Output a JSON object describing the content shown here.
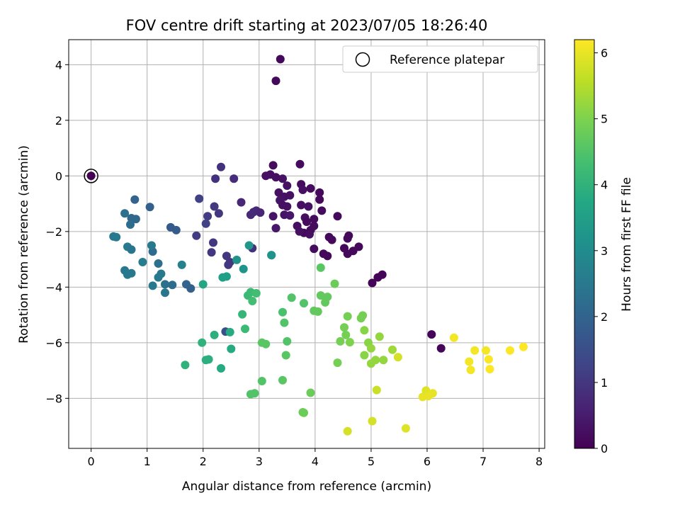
{
  "chart_data": {
    "type": "scatter",
    "title": "FOV centre drift starting at 2023/07/05 18:26:40",
    "xlabel": "Angular distance from reference (arcmin)",
    "ylabel": "Rotation from reference (arcmin)",
    "xlim": [
      -0.4,
      8.1
    ],
    "ylim": [
      -9.8,
      4.9
    ],
    "xticks": [
      0,
      1,
      2,
      3,
      4,
      5,
      6,
      7,
      8
    ],
    "yticks": [
      -8,
      -6,
      -4,
      -2,
      0,
      2,
      4
    ],
    "grid": true,
    "legend": {
      "position": "top-right",
      "entries": [
        "Reference platepar"
      ]
    },
    "reference_point": {
      "x": 0,
      "y": 0
    },
    "colorbar": {
      "label": "Hours from first FF file",
      "colormap": "viridis",
      "range": [
        0,
        6.2
      ],
      "ticks": [
        0,
        1,
        2,
        3,
        4,
        5,
        6
      ]
    },
    "points": [
      [
        0,
        0,
        0
      ],
      [
        3.38,
        4.2,
        0.15
      ],
      [
        3.3,
        3.42,
        0.15
      ],
      [
        3.73,
        0.42,
        0.2
      ],
      [
        3.25,
        0.38,
        0.2
      ],
      [
        3.2,
        0.05,
        0.25
      ],
      [
        3.12,
        0.0,
        0.3
      ],
      [
        3.3,
        -0.05,
        0.25
      ],
      [
        3.42,
        -0.1,
        0.3
      ],
      [
        3.5,
        -0.35,
        0.3
      ],
      [
        3.35,
        -0.6,
        0.3
      ],
      [
        3.45,
        -0.75,
        0.3
      ],
      [
        3.55,
        -0.7,
        0.3
      ],
      [
        3.75,
        -0.3,
        0.2
      ],
      [
        3.78,
        -0.5,
        0.25
      ],
      [
        3.92,
        -0.45,
        0.2
      ],
      [
        4.08,
        -0.6,
        0.15
      ],
      [
        4.08,
        -0.85,
        0.15
      ],
      [
        3.37,
        -0.88,
        0.35
      ],
      [
        3.42,
        -1.05,
        0.3
      ],
      [
        3.5,
        -1.1,
        0.3
      ],
      [
        3.75,
        -1.05,
        0.25
      ],
      [
        3.88,
        -1.1,
        0.3
      ],
      [
        4.12,
        -1.25,
        0.2
      ],
      [
        3.25,
        -1.45,
        0.35
      ],
      [
        3.45,
        -1.4,
        0.35
      ],
      [
        3.55,
        -1.42,
        0.4
      ],
      [
        3.82,
        -1.5,
        0.25
      ],
      [
        3.98,
        -1.55,
        0.2
      ],
      [
        3.85,
        -1.65,
        0.2
      ],
      [
        3.98,
        -1.8,
        0.2
      ],
      [
        3.92,
        -1.95,
        0.2
      ],
      [
        3.8,
        -2.05,
        0.2
      ],
      [
        3.9,
        -2.1,
        0.25
      ],
      [
        3.68,
        -1.8,
        0.25
      ],
      [
        3.72,
        -2.0,
        0.3
      ],
      [
        3.3,
        -1.88,
        0.4
      ],
      [
        4.4,
        -1.45,
        0.15
      ],
      [
        4.25,
        -2.2,
        0.15
      ],
      [
        4.3,
        -2.3,
        0.15
      ],
      [
        4.6,
        -2.15,
        0.15
      ],
      [
        4.58,
        -2.25,
        0.15
      ],
      [
        4.78,
        -2.55,
        0.15
      ],
      [
        4.68,
        -2.7,
        0.15
      ],
      [
        4.52,
        -2.6,
        0.15
      ],
      [
        4.58,
        -2.8,
        0.15
      ],
      [
        4.15,
        -2.8,
        0.15
      ],
      [
        4.22,
        -2.88,
        0.15
      ],
      [
        3.98,
        -2.62,
        0.2
      ],
      [
        5.02,
        -3.85,
        0.05
      ],
      [
        5.12,
        -3.65,
        0.05
      ],
      [
        5.2,
        -3.55,
        0.05
      ],
      [
        6.08,
        -5.7,
        0.1
      ],
      [
        6.25,
        -6.2,
        0.1
      ],
      [
        2.32,
        0.32,
        0.9
      ],
      [
        2.22,
        -0.1,
        0.9
      ],
      [
        2.55,
        -0.1,
        0.8
      ],
      [
        2.9,
        -1.3,
        0.7
      ],
      [
        2.95,
        -1.25,
        0.75
      ],
      [
        2.68,
        -0.95,
        0.7
      ],
      [
        2.85,
        -1.4,
        0.75
      ],
      [
        3.02,
        -1.32,
        0.65
      ],
      [
        2.08,
        -1.45,
        1.1
      ],
      [
        2.28,
        -1.35,
        1.0
      ],
      [
        2.2,
        -1.1,
        1.0
      ],
      [
        2.05,
        -1.72,
        1.2
      ],
      [
        1.93,
        -0.82,
        1.2
      ],
      [
        1.88,
        -2.15,
        1.1
      ],
      [
        2.18,
        -2.4,
        1.0
      ],
      [
        2.15,
        -2.75,
        1.0
      ],
      [
        2.42,
        -2.88,
        1.0
      ],
      [
        2.45,
        -3.2,
        1.0
      ],
      [
        2.48,
        -3.1,
        1.0
      ],
      [
        2.88,
        -2.6,
        0.9
      ],
      [
        2.4,
        -5.6,
        1.5
      ],
      [
        3.22,
        -2.85,
        1.3
      ],
      [
        1.05,
        -1.12,
        1.9
      ],
      [
        0.78,
        -0.85,
        2.0
      ],
      [
        0.72,
        -1.52,
        2.1
      ],
      [
        0.8,
        -1.55,
        2.1
      ],
      [
        0.7,
        -1.75,
        2.2
      ],
      [
        0.6,
        -1.35,
        2.3
      ],
      [
        0.45,
        -2.2,
        2.5
      ],
      [
        0.4,
        -2.18,
        2.5
      ],
      [
        1.42,
        -1.85,
        1.8
      ],
      [
        1.52,
        -1.95,
        1.8
      ],
      [
        1.1,
        -2.72,
        2.2
      ],
      [
        1.08,
        -2.5,
        2.5
      ],
      [
        0.65,
        -2.55,
        2.5
      ],
      [
        0.72,
        -2.65,
        2.4
      ],
      [
        0.92,
        -3.1,
        2.6
      ],
      [
        0.6,
        -3.4,
        2.5
      ],
      [
        0.65,
        -3.55,
        2.5
      ],
      [
        0.72,
        -3.5,
        2.5
      ],
      [
        1.2,
        -3.15,
        2.3
      ],
      [
        1.25,
        -3.52,
        2.5
      ],
      [
        1.2,
        -3.65,
        2.5
      ],
      [
        1.1,
        -3.95,
        2.5
      ],
      [
        1.32,
        -3.9,
        2.3
      ],
      [
        1.32,
        -4.2,
        2.4
      ],
      [
        1.45,
        -3.92,
        2.2
      ],
      [
        1.62,
        -3.2,
        2.7
      ],
      [
        1.7,
        -3.9,
        2.0
      ],
      [
        1.78,
        -4.05,
        1.9
      ],
      [
        2.0,
        -3.9,
        3.7
      ],
      [
        2.35,
        -3.65,
        3.5
      ],
      [
        2.42,
        -3.62,
        3.5
      ],
      [
        2.6,
        -3.02,
        3.2
      ],
      [
        2.72,
        -3.35,
        3.2
      ],
      [
        2.82,
        -2.5,
        3.3
      ],
      [
        3.22,
        -2.85,
        3.2
      ],
      [
        2.7,
        -4.98,
        4.1
      ],
      [
        2.8,
        -4.3,
        4.2
      ],
      [
        2.85,
        -4.18,
        4.2
      ],
      [
        2.88,
        -4.5,
        4.3
      ],
      [
        2.95,
        -4.22,
        4.3
      ],
      [
        2.75,
        -5.5,
        4.2
      ],
      [
        2.48,
        -5.62,
        3.8
      ],
      [
        2.5,
        -6.22,
        3.8
      ],
      [
        2.32,
        -6.92,
        3.8
      ],
      [
        2.1,
        -6.6,
        3.9
      ],
      [
        2.05,
        -6.62,
        3.9
      ],
      [
        2.2,
        -5.72,
        3.9
      ],
      [
        1.98,
        -6.0,
        4.0
      ],
      [
        1.68,
        -6.8,
        4.0
      ],
      [
        2.85,
        -7.85,
        4.5
      ],
      [
        2.92,
        -7.82,
        4.5
      ],
      [
        3.05,
        -7.38,
        4.5
      ],
      [
        3.05,
        -6.0,
        4.6
      ],
      [
        3.12,
        -6.05,
        4.6
      ],
      [
        3.42,
        -4.9,
        4.4
      ],
      [
        3.45,
        -5.28,
        4.5
      ],
      [
        3.5,
        -5.95,
        4.5
      ],
      [
        3.48,
        -6.45,
        4.6
      ],
      [
        3.42,
        -7.35,
        4.6
      ],
      [
        3.58,
        -4.38,
        4.5
      ],
      [
        3.8,
        -4.58,
        4.5
      ],
      [
        3.78,
        -8.5,
        4.8
      ],
      [
        3.8,
        -8.52,
        4.8
      ],
      [
        3.92,
        -7.8,
        4.8
      ],
      [
        3.98,
        -4.85,
        4.7
      ],
      [
        4.05,
        -4.88,
        4.7
      ],
      [
        4.1,
        -3.3,
        4.6
      ],
      [
        4.1,
        -4.3,
        4.7
      ],
      [
        4.18,
        -4.55,
        4.7
      ],
      [
        4.22,
        -4.35,
        4.7
      ],
      [
        4.35,
        -3.88,
        4.8
      ],
      [
        4.4,
        -6.72,
        4.9
      ],
      [
        4.45,
        -5.95,
        4.9
      ],
      [
        4.52,
        -5.45,
        4.9
      ],
      [
        4.55,
        -5.72,
        4.9
      ],
      [
        4.58,
        -5.05,
        4.9
      ],
      [
        4.62,
        -5.98,
        5.0
      ],
      [
        4.85,
        -5.02,
        4.9
      ],
      [
        4.82,
        -5.12,
        4.9
      ],
      [
        4.88,
        -5.55,
        5.1
      ],
      [
        4.88,
        -6.45,
        5.1
      ],
      [
        4.95,
        -6.0,
        5.1
      ],
      [
        5.0,
        -6.2,
        5.2
      ],
      [
        5.0,
        -6.75,
        5.2
      ],
      [
        5.08,
        -6.62,
        5.2
      ],
      [
        5.15,
        -5.78,
        5.2
      ],
      [
        5.22,
        -6.62,
        5.2
      ],
      [
        5.38,
        -6.25,
        5.3
      ],
      [
        4.58,
        -9.18,
        5.8
      ],
      [
        5.02,
        -8.82,
        5.8
      ],
      [
        5.1,
        -7.7,
        5.7
      ],
      [
        5.48,
        -6.52,
        5.8
      ],
      [
        5.62,
        -9.08,
        5.9
      ],
      [
        5.92,
        -7.95,
        6.0
      ],
      [
        5.98,
        -7.72,
        5.9
      ],
      [
        6.02,
        -7.92,
        6.0
      ],
      [
        6.1,
        -7.82,
        6.0
      ],
      [
        6.48,
        -5.82,
        6.1
      ],
      [
        6.75,
        -6.68,
        6.1
      ],
      [
        6.78,
        -6.98,
        6.1
      ],
      [
        6.85,
        -6.28,
        6.1
      ],
      [
        7.05,
        -6.28,
        6.1
      ],
      [
        7.1,
        -6.6,
        6.2
      ],
      [
        7.12,
        -6.95,
        6.2
      ],
      [
        7.48,
        -6.28,
        6.2
      ],
      [
        7.72,
        -6.15,
        6.2
      ]
    ]
  }
}
